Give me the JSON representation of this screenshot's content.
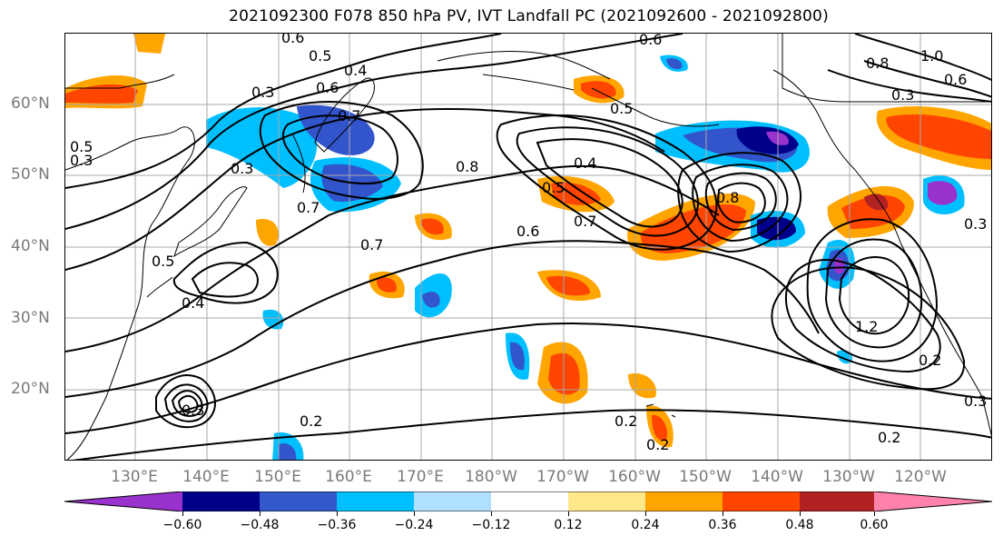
{
  "title": "2021092300 F078 850 hPa PV, IVT Landfall PC (2021092600 - 2021092800)",
  "map": {
    "lat_labels": [
      "60°N",
      "50°N",
      "40°N",
      "30°N",
      "20°N"
    ],
    "lon_labels": [
      "130°E",
      "140°E",
      "150°E",
      "160°E",
      "170°E",
      "180°W",
      "170°W",
      "160°W",
      "150°W",
      "140°W",
      "130°W",
      "120°W"
    ],
    "contour_labels": [
      "0.6",
      "0.5",
      "0.4",
      "0.3",
      "0.6",
      "0.7",
      "0.3",
      "0.5",
      "0.4",
      "0.8",
      "0.7",
      "0.5",
      "0.3",
      "0.4",
      "0.5",
      "0.7",
      "0.7",
      "0.6",
      "0.8",
      "0.6",
      "0.5",
      "0.3",
      "0.2",
      "0.2",
      "0.2",
      "0.2",
      "1.0",
      "0.8",
      "0.6",
      "0.3",
      "1.2",
      "0.3",
      "0.2",
      "0.3"
    ],
    "colors": {
      "strong_negative": "#9932CC",
      "negative_navy": "#00008B",
      "negative_blue": "#3355CC",
      "negative_cyan": "#00BFFF",
      "negative_light": "#AEDDF8",
      "positive_yellow": "#FFE88A",
      "positive_orange": "#FFA500",
      "positive_red": "#FF4500",
      "positive_darkred": "#B22222",
      "positive_pink": "#FF82AB"
    }
  },
  "colorbar": {
    "ticks": [
      "−0.60",
      "−0.48",
      "−0.36",
      "−0.24",
      "−0.12",
      "0.12",
      "0.24",
      "0.36",
      "0.48",
      "0.60"
    ],
    "colors": [
      "#9932CC",
      "#00008B",
      "#3358CC",
      "#00BFFF",
      "#B0E0FF",
      "#FFFFFF",
      "#FFE88A",
      "#FFA500",
      "#FF4500",
      "#B22222",
      "#FF82AB",
      "#FF82AB"
    ]
  }
}
